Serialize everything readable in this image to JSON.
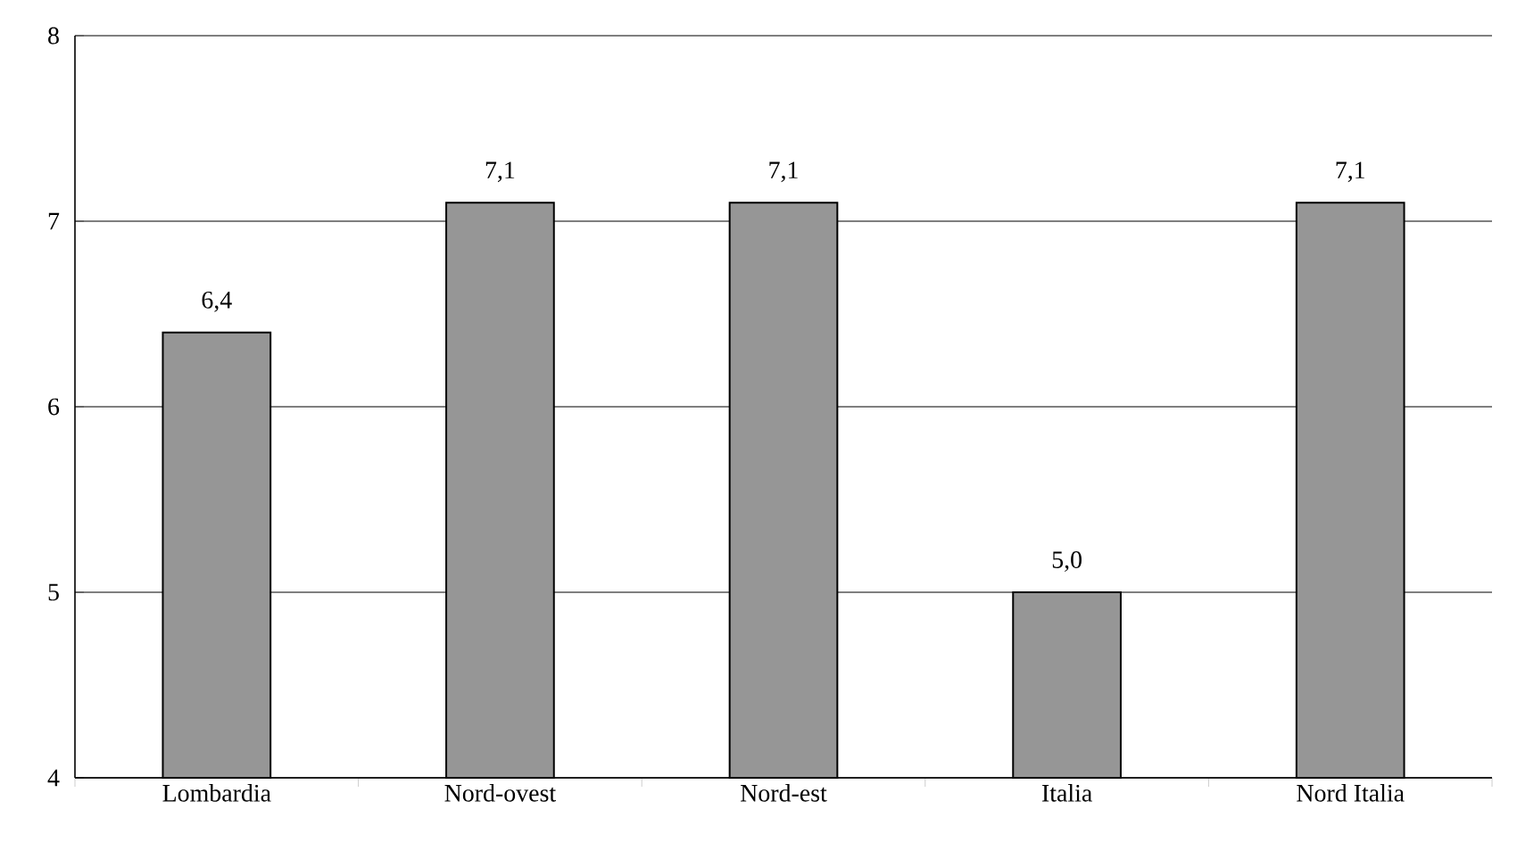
{
  "chart_data": {
    "type": "bar",
    "categories": [
      "Lombardia",
      "Nord-ovest",
      "Nord-est",
      "Italia",
      "Nord Italia"
    ],
    "values": [
      6.4,
      7.1,
      7.1,
      5.0,
      7.1
    ],
    "value_labels": [
      "6,4",
      "7,1",
      "7,1",
      "5,0",
      "7,1"
    ],
    "color": "#969696",
    "ylim": [
      4,
      8
    ],
    "yticks": [
      4,
      5,
      6,
      7,
      8
    ],
    "grid": "y"
  }
}
